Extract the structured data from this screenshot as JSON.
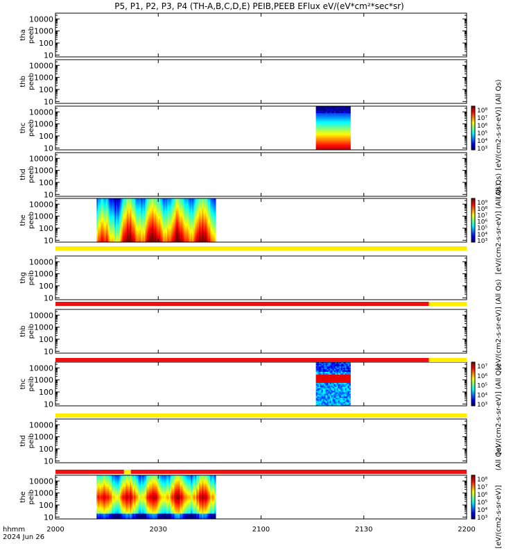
{
  "chart_data": {
    "type": "heatmap",
    "title": "P5, P1, P2, P3, P4 (TH-A,B,C,D,E) PEIB,PEEB EFlux eV/(eV*cm²*sec*sr)",
    "x_axis": {
      "range": [
        "20:00",
        "22:00"
      ],
      "ticks": [
        "2000",
        "2030",
        "2100",
        "2130",
        "2200"
      ],
      "label_left_1": "hhmm",
      "label_left_2": "2024 Jun 26"
    },
    "y_scale": "log",
    "y_ticks": [
      "10",
      "100",
      "1000",
      "10000"
    ],
    "panels": [
      {
        "id": "thd-peeb-top",
        "label1": "tha",
        "label2": "peeb",
        "blocks": []
      },
      {
        "id": "thb-peeb",
        "label1": "thb",
        "label2": "peeb",
        "blocks": []
      },
      {
        "id": "thc-peeb",
        "label1": "thc",
        "label2": "peeb",
        "blocks": [
          {
            "start": "21:16",
            "end": "21:26",
            "pattern": "electron-spectrum"
          }
        ]
      },
      {
        "id": "thd-peeb",
        "label1": "thd",
        "label2": "peeb",
        "blocks": []
      },
      {
        "id": "the-peeb",
        "label1": "the",
        "label2": "peeb",
        "blocks": [
          {
            "start": "20:12",
            "end": "20:47",
            "pattern": "electron-burst"
          }
        ]
      },
      {
        "id": "tha-peib",
        "label1": "thg",
        "label2": "peib",
        "blocks": []
      },
      {
        "id": "thb-peib",
        "label1": "thb",
        "label2": "peib",
        "blocks": []
      },
      {
        "id": "thc-peib",
        "label1": "thc",
        "label2": "peib",
        "blocks": [
          {
            "start": "21:16",
            "end": "21:26",
            "pattern": "ion-spectrum"
          }
        ]
      },
      {
        "id": "thd-peib",
        "label1": "thd",
        "label2": "peib",
        "blocks": []
      },
      {
        "id": "the-peib",
        "label1": "the",
        "label2": "peib",
        "blocks": [
          {
            "start": "20:12",
            "end": "20:47",
            "pattern": "ion-burst"
          }
        ]
      }
    ],
    "mode_bars": [
      {
        "after_panel": 4,
        "segments": [
          {
            "start": "20:00",
            "end": "22:00",
            "color": "#ffee00"
          }
        ]
      },
      {
        "after_panel": 5,
        "segments": [
          {
            "start": "20:00",
            "end": "21:49",
            "color": "#ee1111"
          },
          {
            "start": "21:49",
            "end": "22:00",
            "color": "#ffee00"
          }
        ]
      },
      {
        "after_panel": 6,
        "segments": [
          {
            "start": "20:00",
            "end": "21:49",
            "color": "#ee1111"
          },
          {
            "start": "21:49",
            "end": "22:00",
            "color": "#ffee00"
          }
        ]
      },
      {
        "after_panel": 7,
        "segments": [
          {
            "start": "20:00",
            "end": "22:00",
            "color": "#ffee00"
          }
        ]
      },
      {
        "after_panel": 8,
        "segments": [
          {
            "start": "20:00",
            "end": "20:20",
            "color": "#ee1111"
          },
          {
            "start": "20:20",
            "end": "20:22",
            "color": "#ffee00"
          },
          {
            "start": "20:22",
            "end": "22:00",
            "color": "#ee1111"
          }
        ]
      }
    ],
    "colorbars": [
      {
        "panel": 2,
        "labels": [
          "10⁸",
          "10⁷",
          "10⁶",
          "10⁵",
          "10⁴",
          "10³"
        ]
      },
      {
        "panel": 4,
        "labels": [
          "10⁹",
          "10⁸",
          "10⁷",
          "10⁶",
          "10⁵",
          "10⁴",
          "10³"
        ]
      },
      {
        "panel": 7,
        "labels": [
          "10⁷",
          "10⁶",
          "10⁵",
          "10⁴",
          "10³"
        ]
      },
      {
        "panel": 9,
        "labels": [
          "10⁸",
          "10⁷",
          "10⁶",
          "10⁵",
          "10⁴",
          "10³"
        ]
      }
    ],
    "colorbar_unit": "[eV/(cm2-s-sr-eV)] (All Qs)",
    "side_labels": [
      {
        "text": "[eV/(cm2-s-sr-eV)]  (All Qs)"
      },
      {
        "text": "(All Qs)"
      },
      {
        "text": "[eV/(cm2-s-sr-eV)]  (All Qs)"
      },
      {
        "text": "[eV/(cm2-s-sr-eV)]  (All Qs)"
      },
      {
        "text": "[eV/(cm2-s-sr-eV)]"
      },
      {
        "text": "(All Qs)"
      },
      {
        "text": "[eV/(cm2-s-sr-eV)]  (All Qs)"
      }
    ]
  }
}
